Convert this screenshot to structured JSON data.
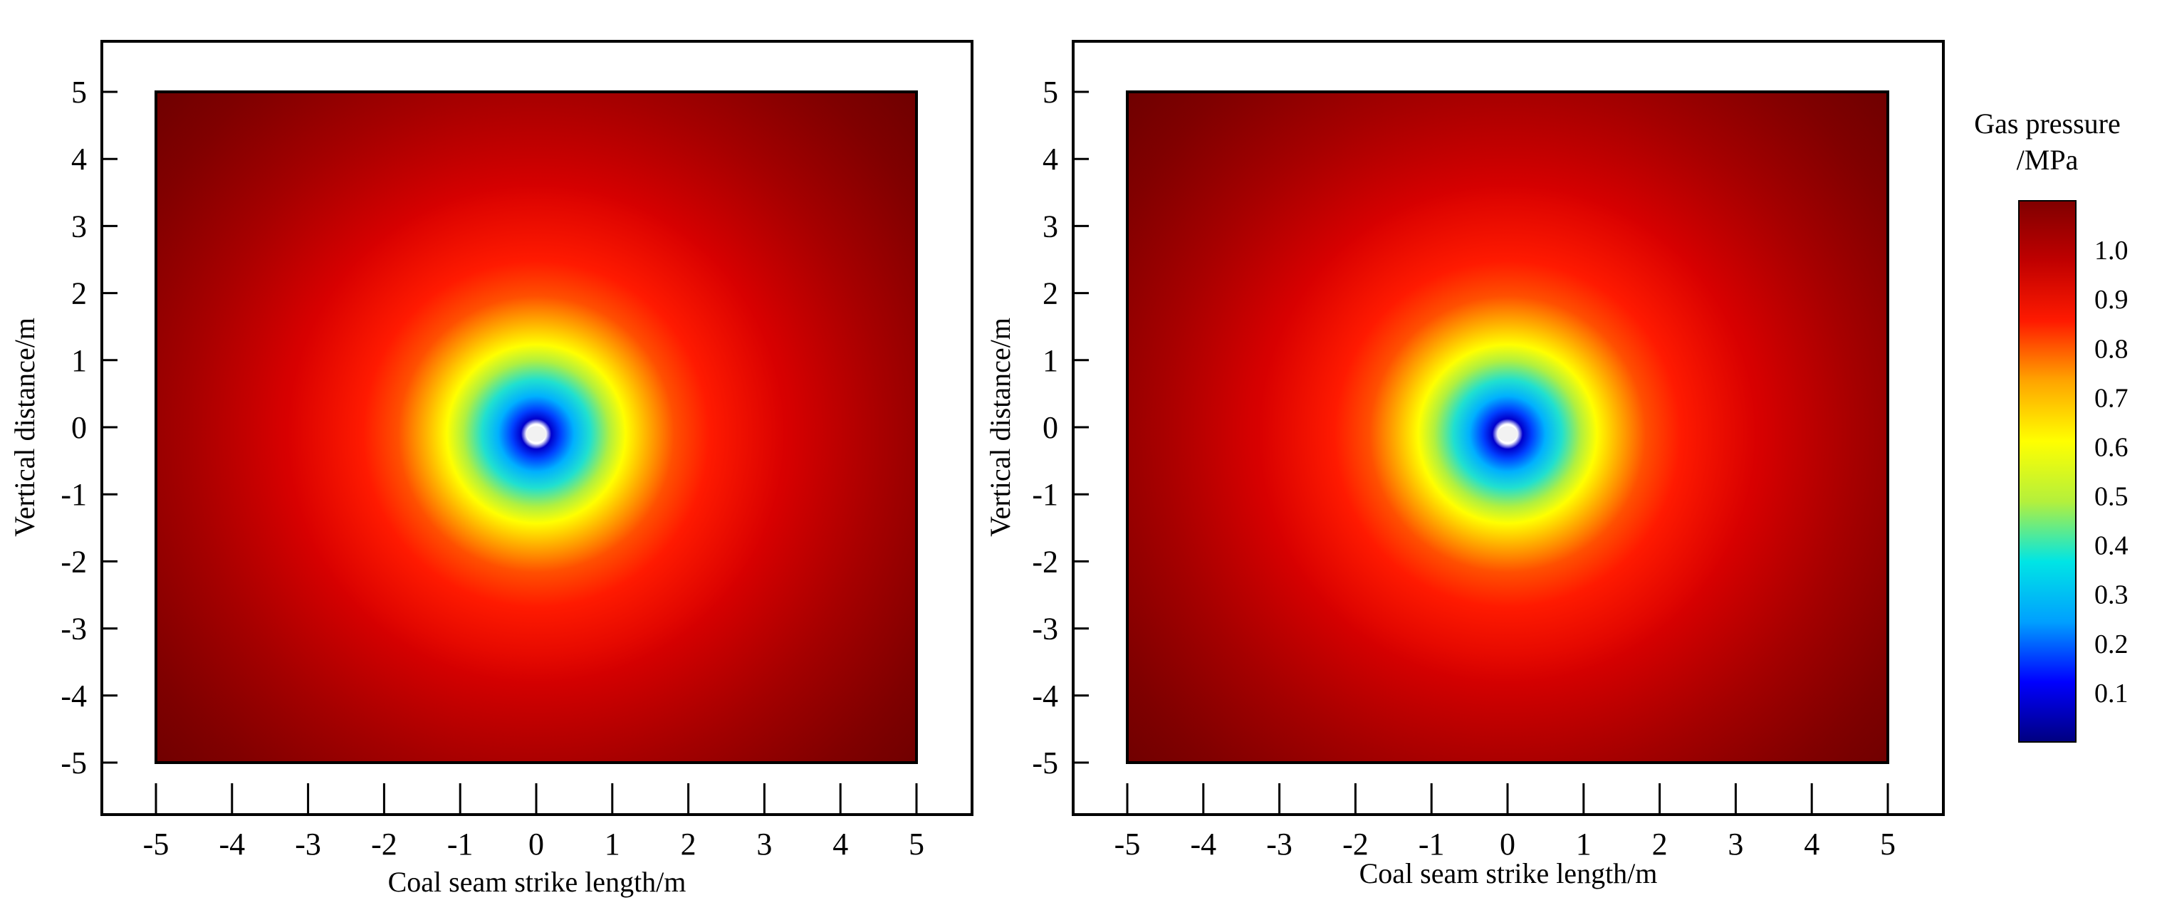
{
  "chart_data": [
    {
      "type": "heatmap",
      "xlabel": "Coal seam strike length/m",
      "ylabel": "Vertical distance/m",
      "x_ticks": [
        -5,
        -4,
        -3,
        -2,
        -1,
        0,
        1,
        2,
        3,
        4,
        5
      ],
      "y_ticks": [
        5,
        4,
        3,
        2,
        1,
        0,
        -1,
        -2,
        -3,
        -4,
        -5
      ],
      "xlim": [
        -5,
        5
      ],
      "ylim": [
        -5,
        5
      ],
      "hole_center": [
        0,
        -0.1
      ],
      "field_range": [
        0,
        1.05
      ]
    },
    {
      "type": "heatmap",
      "xlabel": "Coal seam strike length/m",
      "ylabel": "Vertical distance/m",
      "x_ticks": [
        -5,
        -4,
        -3,
        -2,
        -1,
        0,
        1,
        2,
        3,
        4,
        5
      ],
      "y_ticks": [
        5,
        4,
        3,
        2,
        1,
        0,
        -1,
        -2,
        -3,
        -4,
        -5
      ],
      "xlim": [
        -5,
        5
      ],
      "ylim": [
        -5,
        5
      ],
      "hole_center": [
        0,
        -0.1
      ],
      "field_range": [
        0,
        1.05
      ]
    }
  ],
  "colorbar": {
    "title_line1": "Gas pressure",
    "title_line2": "/MPa",
    "ticks": [
      1.0,
      0.9,
      0.8,
      0.7,
      0.6,
      0.5,
      0.4,
      0.3,
      0.2,
      0.1
    ],
    "tick_labels": [
      "1.0",
      "0.9",
      "0.8",
      "0.7",
      "0.6",
      "0.5",
      "0.4",
      "0.3",
      "0.2",
      "0.1"
    ],
    "range": [
      0,
      1.1
    ],
    "colors": [
      "#000080",
      "#0000ff",
      "#00a0ff",
      "#00e5e5",
      "#b4f03c",
      "#ffff00",
      "#ffa500",
      "#ff1a00",
      "#c00000",
      "#800000"
    ]
  }
}
